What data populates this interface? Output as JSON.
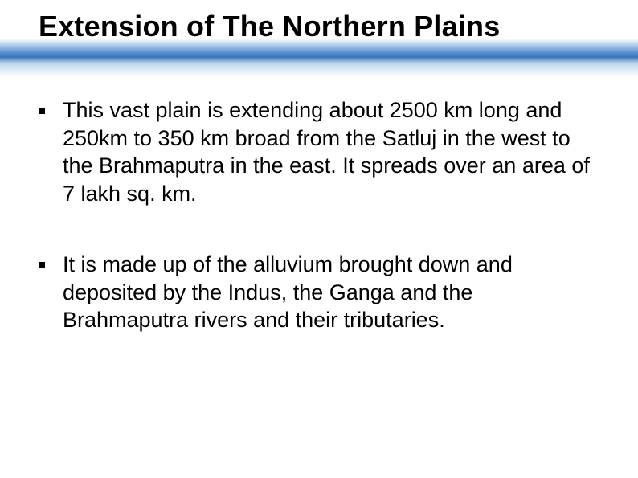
{
  "slide": {
    "title": "Extension of The Northern Plains",
    "title_fontsize": 36,
    "title_color": "#000000",
    "band_gradient": {
      "top": "#ffffff",
      "mid_blue": "#5a92d0",
      "deep_blue": "#3a73b8",
      "light_blue": "#bad4ec",
      "fade": "#dceaf6"
    },
    "background_color": "#ffffff",
    "bullets": [
      {
        "text": "This vast plain is extending about 2500 km long and 250km to 350 km broad  from the Satluj in the west  to the Brahmaputra in the east. It spreads over an area of 7 lakh sq. km."
      },
      {
        "text": "It is made up of the alluvium brought down and deposited by the Indus, the Ganga and the Brahmaputra rivers and their tributaries."
      }
    ],
    "bullet_fontsize": 27,
    "bullet_color": "#000000",
    "bullet_marker_color": "#000000",
    "bullet_marker_size": 8
  }
}
